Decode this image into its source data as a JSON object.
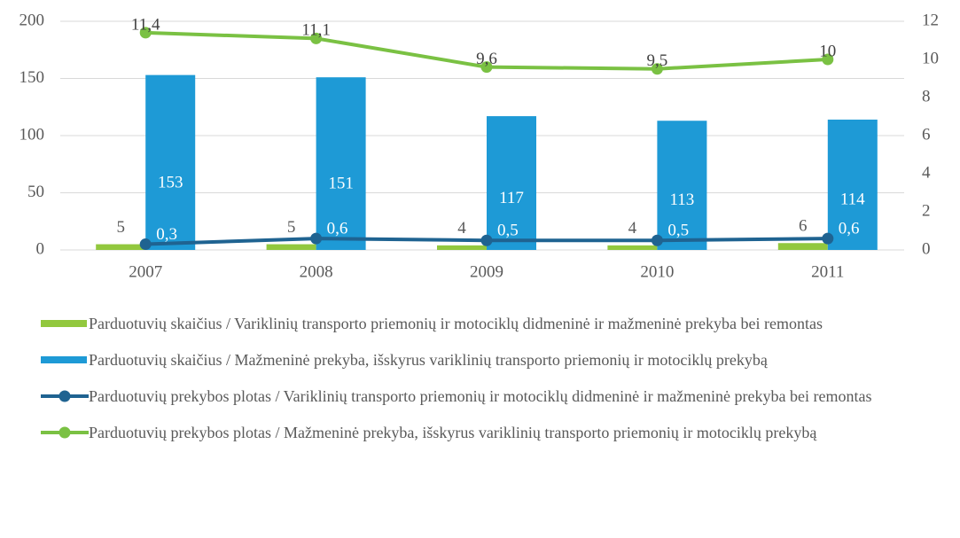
{
  "chart_data": {
    "type": "bar-line",
    "categories": [
      "2007",
      "2008",
      "2009",
      "2010",
      "2011"
    ],
    "series": [
      {
        "name": "Parduotuvių skaičius / Variklinių transporto priemonių ir motociklų didmeninė ir mažmeninė prekyba bei remontas",
        "type": "bar",
        "color": "#92c83e",
        "values": [
          5,
          5,
          4,
          4,
          6
        ]
      },
      {
        "name": "Parduotuvių skaičius / Mažmeninė prekyba, išskyrus variklinių transporto priemonių ir motociklų prekybą",
        "type": "bar",
        "color": "#1e9ad6",
        "values": [
          153,
          151,
          117,
          113,
          114
        ]
      },
      {
        "name": "Parduotuvių prekybos plotas / Variklinių transporto priemonių ir motociklų didmeninė ir mažmeninė prekyba bei remontas",
        "type": "line",
        "axis": "y2",
        "color": "#1f6391",
        "values": [
          0.3,
          0.6,
          0.5,
          0.5,
          0.6
        ],
        "value_labels": [
          "0,3",
          "0,6",
          "0,5",
          "0,5",
          "0,6"
        ]
      },
      {
        "name": "Parduotuvių prekybos plotas / Mažmeninė prekyba, išskyrus variklinių transporto priemonių ir motociklų prekybą",
        "type": "line",
        "axis": "y2",
        "color": "#7ac143",
        "values": [
          11.4,
          11.1,
          9.6,
          9.5,
          10
        ],
        "value_labels": [
          "11,4",
          "11,1",
          "9,6",
          "9,5",
          "10"
        ]
      }
    ],
    "ylim": [
      0,
      200
    ],
    "yticks": [
      0,
      50,
      100,
      150,
      200
    ],
    "y2lim": [
      0,
      12
    ],
    "y2ticks": [
      0,
      2,
      4,
      6,
      8,
      10,
      12
    ],
    "grid": true,
    "legend": "bottom"
  }
}
